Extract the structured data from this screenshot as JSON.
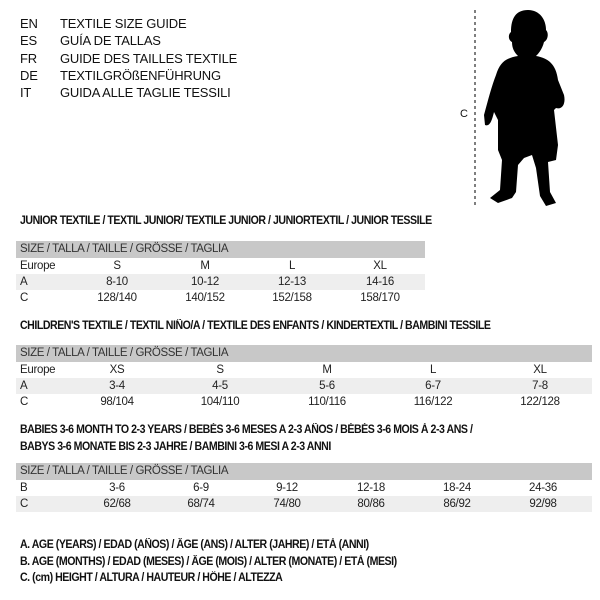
{
  "languages": [
    {
      "code": "EN",
      "title": "TEXTILE SIZE GUIDE"
    },
    {
      "code": "ES",
      "title": "GUÍA DE TALLAS"
    },
    {
      "code": "FR",
      "title": "GUIDE DES TAILLES TEXTILE"
    },
    {
      "code": "DE",
      "title": "TEXTILGRÖßENFÜHRUNG"
    },
    {
      "code": "IT",
      "title": "GUIDA ALLE TAGLIE TESSILI"
    }
  ],
  "figure": {
    "measure_label": "C"
  },
  "tables": [
    {
      "heading": [
        "JUNIOR TEXTILE / TEXTIL JUNIOR/ TEXTILE JUNIOR / JUNIORTEXTIL / JUNIOR TESSILE"
      ],
      "header": "SIZE / TALLA / TAILLE / GRÖSSE / TAGLIA",
      "rows": [
        {
          "label": "Europe",
          "cells": [
            "S",
            "M",
            "L",
            "XL"
          ]
        },
        {
          "label": "A",
          "cells": [
            "8-10",
            "10-12",
            "12-13",
            "14-16"
          ]
        },
        {
          "label": "C",
          "cells": [
            "128/140",
            "140/152",
            "152/158",
            "158/170"
          ]
        }
      ]
    },
    {
      "heading": [
        "CHILDREN'S TEXTILE / TEXTIL NIÑO/A / TEXTILE DES ENFANTS / KINDERTEXTIL / BAMBINI TESSILE"
      ],
      "header": "SIZE / TALLA / TAILLE / GRÖSSE / TAGLIA",
      "rows": [
        {
          "label": "Europe",
          "cells": [
            "XS",
            "S",
            "M",
            "L",
            "XL"
          ]
        },
        {
          "label": "A",
          "cells": [
            "3-4",
            "4-5",
            "5-6",
            "6-7",
            "7-8"
          ]
        },
        {
          "label": "C",
          "cells": [
            "98/104",
            "104/110",
            "110/116",
            "116/122",
            "122/128"
          ]
        }
      ]
    },
    {
      "heading": [
        "BABIES 3-6 MONTH TO 2-3 YEARS / BEBÉS 3-6 MESES A 2-3 AÑOS / BÉBÉS 3-6 MOIS À 2-3 ANS /",
        "BABYS 3-6 MONATE BIS 2-3 JAHRE / BAMBINI 3-6 MESI A 2-3 ANNI"
      ],
      "header": "SIZE / TALLA / TAILLE / GRÖSSE / TAGLIA",
      "rows": [
        {
          "label": "B",
          "cells": [
            "3-6",
            "6-9",
            "9-12",
            "12-18",
            "18-24",
            "24-36"
          ]
        },
        {
          "label": "C",
          "cells": [
            "62/68",
            "68/74",
            "74/80",
            "80/86",
            "86/92",
            "92/98"
          ]
        }
      ]
    }
  ],
  "legend": [
    "A. AGE (YEARS) / EDAD (AÑOS) / ÂGE (ANS) / ALTER (JAHRE) / ETÀ (ANNI)",
    "B. AGE (MONTHS) / EDAD (MESES) / ÂGE (MOIS) / ALTER (MONATE) / ETÀ (MESI)",
    "C. (cm) HEIGHT / ALTURA / HAUTEUR / HÖHE / ALTEZZA"
  ]
}
